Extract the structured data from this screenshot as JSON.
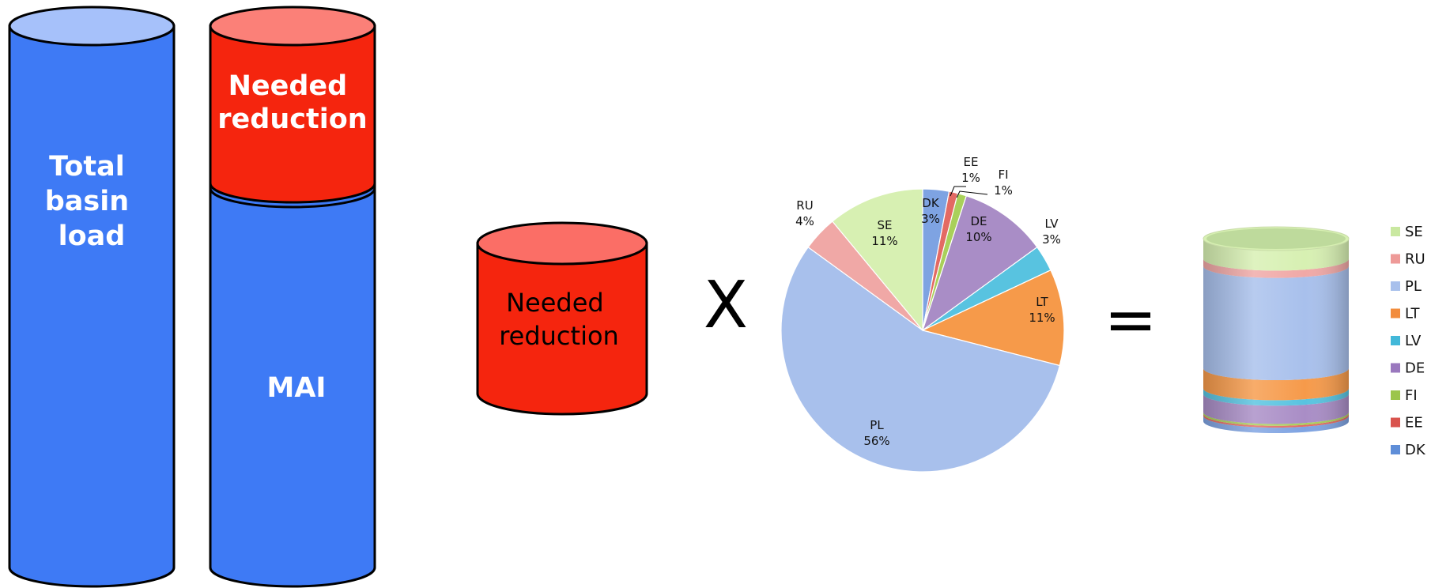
{
  "left_cylinders": {
    "total": {
      "label_lines": [
        "Total",
        "basin",
        "load"
      ],
      "color": "#3E7AF5",
      "top_color": "#A6C1FA"
    },
    "split": {
      "reduction_lines": [
        "Needed",
        "reduction"
      ],
      "mai_label": "MAI",
      "red_color": "#F5250E",
      "red_top_color": "#FB8078",
      "blue_color": "#3E7AF5"
    }
  },
  "middle_cylinder": {
    "label_lines": [
      "Needed",
      "reduction"
    ],
    "color": "#F5250E",
    "top_color": "#FB6E66"
  },
  "operators": {
    "multiply": "X",
    "equals": "="
  },
  "chart_data": {
    "type": "pie",
    "slices": [
      {
        "code": "DK",
        "value": 3,
        "label": "3%",
        "color": "#7EA3E2"
      },
      {
        "code": "EE",
        "value": 1,
        "label": "1%",
        "color": "#E36A63"
      },
      {
        "code": "FI",
        "value": 1,
        "label": "1%",
        "color": "#A9D05A"
      },
      {
        "code": "DE",
        "value": 10,
        "label": "10%",
        "color": "#A98DC6"
      },
      {
        "code": "LV",
        "value": 3,
        "label": "3%",
        "color": "#58C3E0"
      },
      {
        "code": "LT",
        "value": 11,
        "label": "11%",
        "color": "#F69A4A"
      },
      {
        "code": "PL",
        "value": 56,
        "label": "56%",
        "color": "#A8C0EC"
      },
      {
        "code": "RU",
        "value": 4,
        "label": "4%",
        "color": "#F0A8A6"
      },
      {
        "code": "SE",
        "value": 11,
        "label": "11%",
        "color": "#D7F0B2"
      }
    ]
  },
  "result_cylinder": {
    "bands": [
      {
        "code": "DK",
        "value": 3,
        "color": "#7EA3E2"
      },
      {
        "code": "EE",
        "value": 1,
        "color": "#E36A63"
      },
      {
        "code": "FI",
        "value": 1,
        "color": "#A9D05A"
      },
      {
        "code": "DE",
        "value": 10,
        "color": "#A98DC6"
      },
      {
        "code": "LV",
        "value": 3,
        "color": "#58C3E0"
      },
      {
        "code": "LT",
        "value": 11,
        "color": "#F69A4A"
      },
      {
        "code": "PL",
        "value": 56,
        "color": "#A8C0EC"
      },
      {
        "code": "RU",
        "value": 4,
        "color": "#F0A8A6"
      },
      {
        "code": "SE",
        "value": 11,
        "color": "#D7F0B2"
      }
    ]
  },
  "legend": {
    "items": [
      {
        "label": "SE",
        "color": "#C9E8A0"
      },
      {
        "label": "RU",
        "color": "#EE9A98"
      },
      {
        "label": "PL",
        "color": "#A8C0EC"
      },
      {
        "label": "LT",
        "color": "#F28C3C"
      },
      {
        "label": "LV",
        "color": "#42B8D9"
      },
      {
        "label": "DE",
        "color": "#9A78BE"
      },
      {
        "label": "FI",
        "color": "#9CC54C"
      },
      {
        "label": "EE",
        "color": "#D9534D"
      },
      {
        "label": "DK",
        "color": "#5F8ED8"
      }
    ]
  }
}
